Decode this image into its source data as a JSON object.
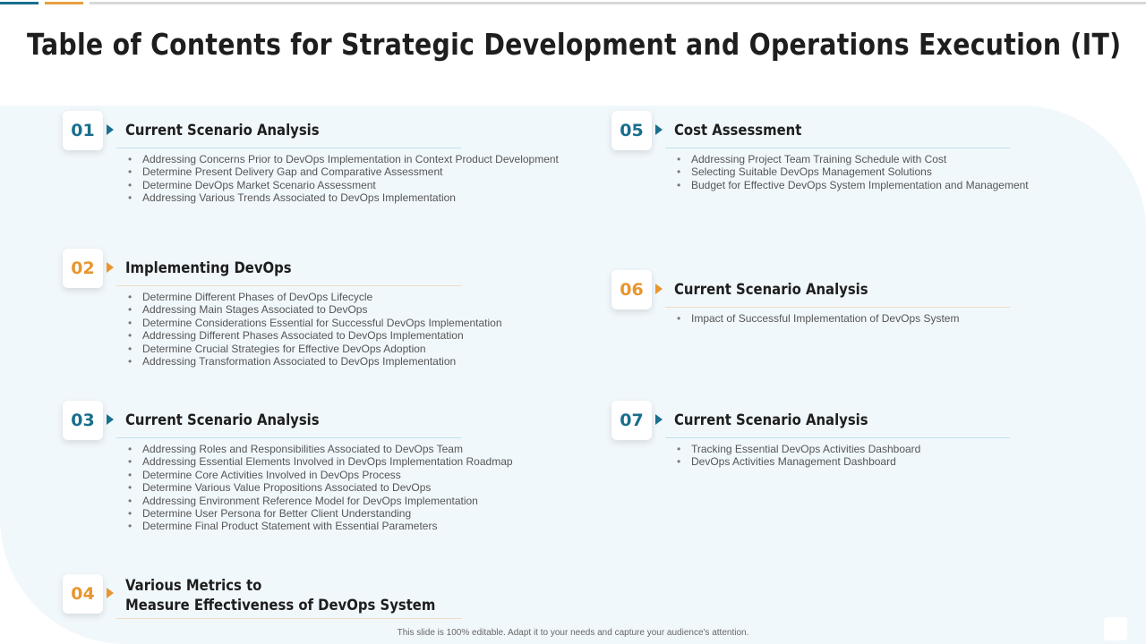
{
  "title": "Table of Contents for Strategic Development and Operations Execution (IT)",
  "colors": {
    "teal": "#1a6e8e",
    "orange": "#e8962e"
  },
  "sections": [
    {
      "number": "01",
      "heading": "Current Scenario Analysis",
      "accent": "teal",
      "items": [
        "Addressing Concerns Prior to DevOps Implementation in Context Product Development",
        "Determine Present Delivery Gap and Comparative Assessment",
        "Determine DevOps Market Scenario Assessment",
        "Addressing Various Trends Associated to DevOps Implementation"
      ]
    },
    {
      "number": "02",
      "heading": "Implementing DevOps",
      "accent": "orange",
      "items": [
        "Determine Different Phases of DevOps Lifecycle",
        "Addressing Main Stages Associated to DevOps",
        "Determine Considerations Essential for Successful DevOps Implementation",
        "Addressing Different Phases Associated to DevOps Implementation",
        "Determine Crucial Strategies for Effective DevOps Adoption",
        "Addressing Transformation Associated to DevOps Implementation"
      ]
    },
    {
      "number": "03",
      "heading": "Current Scenario Analysis",
      "accent": "teal",
      "items": [
        "Addressing Roles and Responsibilities Associated to DevOps Team",
        "Addressing Essential Elements Involved in DevOps Implementation Roadmap",
        "Determine Core Activities Involved in DevOps Process",
        "Determine Various Value Propositions Associated to DevOps",
        "Addressing Environment Reference Model for DevOps Implementation",
        "Determine User Persona for Better Client Understanding",
        "Determine Final Product Statement with Essential Parameters"
      ]
    },
    {
      "number": "04",
      "heading_line1": "Various Metrics to",
      "heading_line2": "Measure Effectiveness of  DevOps System",
      "accent": "orange",
      "items": []
    },
    {
      "number": "05",
      "heading": "Cost Assessment",
      "accent": "teal",
      "items": [
        "Addressing Project Team Training Schedule with Cost",
        "Selecting Suitable DevOps Management Solutions",
        "Budget for Effective DevOps System Implementation and Management"
      ]
    },
    {
      "number": "06",
      "heading": "Current Scenario Analysis",
      "accent": "orange",
      "items": [
        "Impact of Successful Implementation of DevOps System"
      ]
    },
    {
      "number": "07",
      "heading": "Current Scenario Analysis",
      "accent": "teal",
      "items": [
        "Tracking Essential DevOps Activities Dashboard",
        "DevOps Activities Management Dashboard"
      ]
    }
  ],
  "footer": "This slide is 100% editable. Adapt it to your needs and capture your audience's attention."
}
